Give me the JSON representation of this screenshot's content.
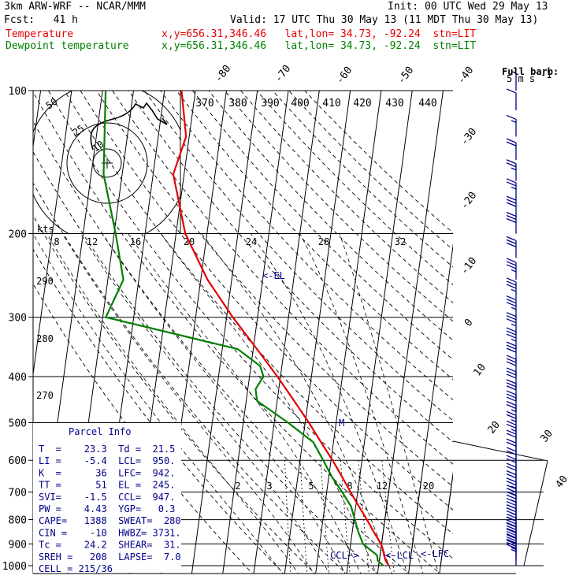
{
  "header": {
    "model": "3km ARW-WRF -- NCAR/MMM",
    "init": "Init: 00 UTC Wed 29 May 13",
    "fcst": "Fcst:   41 h",
    "valid": "Valid: 17 UTC Thu 30 May 13 (11 MDT Thu 30 May 13)",
    "temp_label": "Temperature",
    "temp_loc": "x,y=656.31,346.46   lat,lon= 34.73, -92.24  stn=LIT",
    "dew_label": "Dewpoint temperature",
    "dew_loc": "x,y=656.31,346.46   lat,lon= 34.73, -92.24  stn=LIT"
  },
  "barb_legend": {
    "title": "Full barb:",
    "value": "5 m s",
    "exp": "-1"
  },
  "colors": {
    "temperature": "#e60000",
    "dewpoint": "#008000",
    "annotation": "#00008b",
    "grid": "#000000"
  },
  "chart_data": {
    "type": "line",
    "chart_kind": "skew-T log-P sounding",
    "pressure_levels_hPa": [
      100,
      200,
      300,
      400,
      500,
      600,
      700,
      800,
      900,
      1000
    ],
    "pressure_labels": [
      "100",
      "200",
      "300",
      "400",
      "500",
      "600",
      "700",
      "800",
      "900",
      "1000"
    ],
    "isotherm_labels": [
      "-80",
      "-70",
      "-60",
      "-50",
      "-40",
      "-30",
      "-20",
      "-10",
      "0",
      "10",
      "20",
      "30",
      "40"
    ],
    "theta_labels": [
      "370",
      "380",
      "390",
      "400",
      "410",
      "420",
      "430",
      "440"
    ],
    "theta_left_labels": [
      "290",
      "280",
      "270"
    ],
    "hodograph_speed_labels": [
      "8",
      "12",
      "16",
      "20",
      "24",
      "28",
      "32"
    ],
    "hodograph_unit": "kts",
    "hodograph_rings": [
      "50",
      "25",
      "10"
    ],
    "mixing_ratio_labels": [
      "2",
      "3",
      "5",
      "8",
      "12",
      "20"
    ],
    "markers": {
      "el": "<-EL",
      "ccl": "CCL->",
      "lcl": "<-LCL",
      "lfc": "<-LFC",
      "m": "M"
    },
    "series": [
      {
        "name": "Temperature",
        "points": [
          [
            1000,
            23.3
          ],
          [
            975,
            22.0
          ],
          [
            950,
            21.3
          ],
          [
            925,
            20.7
          ],
          [
            900,
            19.8
          ],
          [
            850,
            17.0
          ],
          [
            800,
            14.2
          ],
          [
            750,
            11.0
          ],
          [
            700,
            7.7
          ],
          [
            650,
            4.3
          ],
          [
            600,
            0.5
          ],
          [
            550,
            -4.0
          ],
          [
            500,
            -8.8
          ],
          [
            450,
            -14.5
          ],
          [
            400,
            -21.0
          ],
          [
            350,
            -28.8
          ],
          [
            300,
            -38.0
          ],
          [
            250,
            -47.8
          ],
          [
            200,
            -57.0
          ],
          [
            150,
            -63.5
          ],
          [
            125,
            -61.0
          ],
          [
            100,
            -64.5
          ]
        ]
      },
      {
        "name": "Dewpoint temperature",
        "points": [
          [
            1000,
            21.5
          ],
          [
            975,
            19.5
          ],
          [
            950,
            19.0
          ],
          [
            925,
            16.5
          ],
          [
            900,
            14.0
          ],
          [
            850,
            12.0
          ],
          [
            800,
            10.3
          ],
          [
            750,
            8.5
          ],
          [
            700,
            5.0
          ],
          [
            650,
            1.0
          ],
          [
            600,
            -2.5
          ],
          [
            550,
            -6.5
          ],
          [
            500,
            -15.5
          ],
          [
            450,
            -26.5
          ],
          [
            425,
            -27.5
          ],
          [
            400,
            -25.5
          ],
          [
            380,
            -27.0
          ],
          [
            350,
            -35.0
          ],
          [
            300,
            -79.0
          ],
          [
            250,
            -75.0
          ],
          [
            200,
            -79.5
          ],
          [
            150,
            -86.0
          ],
          [
            100,
            -89.0
          ]
        ]
      }
    ],
    "wind_barbs": [
      {
        "p": 1000,
        "spd": 15
      },
      {
        "p": 975,
        "spd": 25
      },
      {
        "p": 950,
        "spd": 30
      },
      {
        "p": 925,
        "spd": 30
      },
      {
        "p": 900,
        "spd": 30
      },
      {
        "p": 875,
        "spd": 30
      },
      {
        "p": 850,
        "spd": 30
      },
      {
        "p": 825,
        "spd": 25
      },
      {
        "p": 800,
        "spd": 25
      },
      {
        "p": 775,
        "spd": 25
      },
      {
        "p": 750,
        "spd": 25
      },
      {
        "p": 725,
        "spd": 25
      },
      {
        "p": 700,
        "spd": 20
      },
      {
        "p": 675,
        "spd": 20
      },
      {
        "p": 650,
        "spd": 20
      },
      {
        "p": 625,
        "spd": 20
      },
      {
        "p": 600,
        "spd": 20
      },
      {
        "p": 575,
        "spd": 20
      },
      {
        "p": 550,
        "spd": 25
      },
      {
        "p": 525,
        "spd": 25
      },
      {
        "p": 500,
        "spd": 25
      },
      {
        "p": 475,
        "spd": 30
      },
      {
        "p": 450,
        "spd": 30
      },
      {
        "p": 425,
        "spd": 30
      },
      {
        "p": 400,
        "spd": 30
      },
      {
        "p": 375,
        "spd": 30
      },
      {
        "p": 350,
        "spd": 35
      },
      {
        "p": 325,
        "spd": 35
      },
      {
        "p": 300,
        "spd": 35
      },
      {
        "p": 275,
        "spd": 35
      },
      {
        "p": 250,
        "spd": 35
      },
      {
        "p": 225,
        "spd": 30
      },
      {
        "p": 200,
        "spd": 30
      },
      {
        "p": 185,
        "spd": 30
      },
      {
        "p": 170,
        "spd": 25
      },
      {
        "p": 155,
        "spd": 25
      },
      {
        "p": 140,
        "spd": 20
      },
      {
        "p": 125,
        "spd": 15
      },
      {
        "p": 110,
        "spd": 10
      },
      {
        "p": 100,
        "spd": 5
      }
    ]
  },
  "parcel": {
    "title": "Parcel Info",
    "rows": [
      "T  =    23.3  Td =  21.5",
      "LI =    -5.4  LCL=  950.",
      "K  =      36  LFC=  942.",
      "TT =      51  EL =  245.",
      "SVI=    -1.5  CCL=  947.",
      "PW =    4.43  YGP=   0.3",
      "CAPE=   1388  SWEAT=  280",
      "CIN =    -10  HWBZ= 3731.",
      "Tc =    24.2  SHEAR=  31.",
      "SREH =   208  LAPSE=  7.0",
      "CELL = 215/36"
    ]
  }
}
